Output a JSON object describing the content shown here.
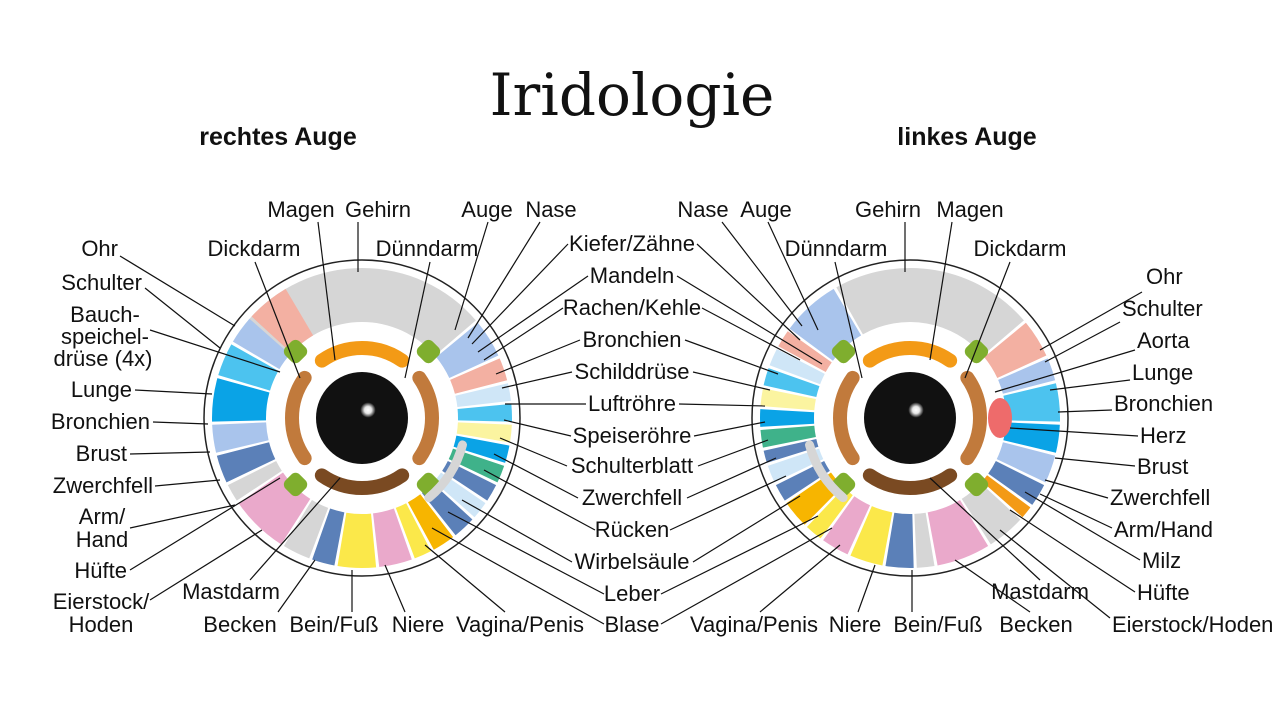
{
  "title": "Iridologie",
  "right_eye": {
    "heading": "rechtes Auge",
    "labels": {
      "magen": "Magen",
      "gehirn": "Gehirn",
      "auge": "Auge",
      "nase": "Nase",
      "dickdarm": "Dickdarm",
      "duenndarm": "Dünndarm",
      "ohr": "Ohr",
      "schulter": "Schulter",
      "bauch_1": "Bauch-",
      "bauch_2": "speichel-",
      "bauch_3": "drüse (4x)",
      "lunge": "Lunge",
      "bronchien": "Bronchien",
      "brust": "Brust",
      "zwerchfell": "Zwerchfell",
      "arm_1": "Arm/",
      "arm_2": "Hand",
      "huefte": "Hüfte",
      "eierstock_1": "Eierstock/",
      "eierstock_2": "Hoden",
      "mastdarm": "Mastdarm",
      "becken": "Becken",
      "beinfuss": "Bein/Fuß",
      "niere": "Niere",
      "vagina": "Vagina/Penis"
    }
  },
  "center_labels": {
    "kiefer": "Kiefer/Zähne",
    "mandeln": "Mandeln",
    "rachen": "Rachen/Kehle",
    "bronchien": "Bronchien",
    "schilddruese": "Schilddrüse",
    "luftroehre": "Luftröhre",
    "speiseroehre": "Speiseröhre",
    "schulterblatt": "Schulterblatt",
    "zwerchfell": "Zwerchfell",
    "ruecken": "Rücken",
    "wirbelsaeule": "Wirbelsäule",
    "leber": "Leber",
    "blase": "Blase"
  },
  "left_eye": {
    "heading": "linkes Auge",
    "labels": {
      "nase": "Nase",
      "auge": "Auge",
      "gehirn": "Gehirn",
      "magen": "Magen",
      "duenndarm": "Dünndarm",
      "dickdarm": "Dickdarm",
      "ohr": "Ohr",
      "schulter": "Schulter",
      "aorta": "Aorta",
      "lunge": "Lunge",
      "bronchien": "Bronchien",
      "herz": "Herz",
      "brust": "Brust",
      "zwerchfell": "Zwerchfell",
      "armhand": "Arm/Hand",
      "milz": "Milz",
      "huefte": "Hüfte",
      "eierstock": "Eierstock/Hoden",
      "mastdarm": "Mastdarm",
      "becken": "Becken",
      "beinfuss": "Bein/Fuß",
      "niere": "Niere",
      "vagina": "Vagina/Penis"
    }
  },
  "colors": {
    "gray": "#d6d6d6",
    "salmon": "#f3b0a2",
    "light_blue": "#a9c4ec",
    "cyan": "#4cc3ef",
    "blue": "#0aa3e6",
    "steel": "#5b80b8",
    "pink": "#eaa9cb",
    "yellow": "#fbe84a",
    "amber": "#f7b500",
    "pale_yellow": "#fbf4a0",
    "teal": "#3fb28a",
    "pale_blue": "#cfe6f7",
    "red": "#ee6b6b",
    "orange": "#f39a16",
    "green": "#7fae2e",
    "brown": "#c17a3c",
    "dark_brown": "#7a4a22",
    "pupil": "#111111"
  }
}
